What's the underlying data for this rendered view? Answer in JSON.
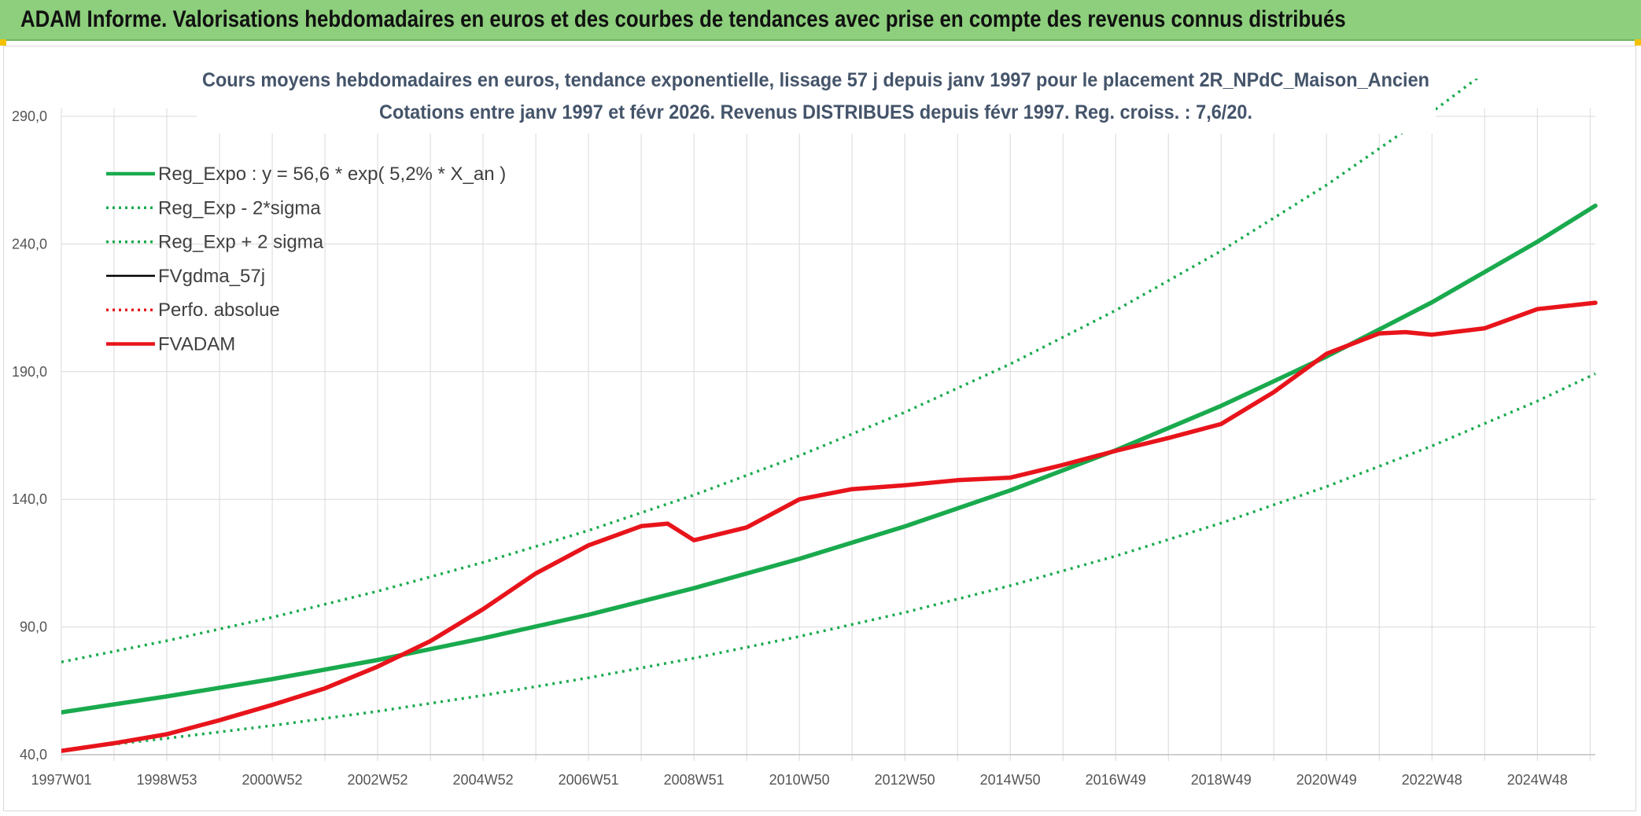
{
  "header": {
    "title": "ADAM Informe. Valorisations hebdomadaires en euros et des courbes de tendances avec prise en compte des revenus connus distribués"
  },
  "colors": {
    "banner": "#8dcf7c",
    "regression": "#1aaa4e",
    "actual": "#e8141b",
    "smooth": "#000000",
    "grid": "#d9d9d9"
  },
  "chart_data": {
    "type": "line",
    "title": "Cours moyens hebdomadaires en euros, tendance exponentielle, lissage 57 j depuis janv 1997 pour le placement 2R_NPdC_Maison_Ancien",
    "subtitle": "Cotations entre janv 1997 et févr 2026. Revenus DISTRIBUES depuis févr 1997. Reg. croiss. : 7,6/20.",
    "xlabel": "",
    "ylabel": "",
    "ylim": [
      40,
      290
    ],
    "y_ticks": [
      "40,0",
      "90,0",
      "140,0",
      "190,0",
      "240,0",
      "290,0"
    ],
    "x_range": [
      1997.0,
      2026.1
    ],
    "x_ticks": [
      {
        "x": 1997.0,
        "label": "1997W01"
      },
      {
        "x": 1999.0,
        "label": "1998W53"
      },
      {
        "x": 2001.0,
        "label": "2000W52"
      },
      {
        "x": 2003.0,
        "label": "2002W52"
      },
      {
        "x": 2005.0,
        "label": "2004W52"
      },
      {
        "x": 2007.0,
        "label": "2006W51"
      },
      {
        "x": 2009.0,
        "label": "2008W51"
      },
      {
        "x": 2011.0,
        "label": "2010W50"
      },
      {
        "x": 2013.0,
        "label": "2012W50"
      },
      {
        "x": 2015.0,
        "label": "2014W50"
      },
      {
        "x": 2017.0,
        "label": "2016W49"
      },
      {
        "x": 2019.0,
        "label": "2018W49"
      },
      {
        "x": 2021.0,
        "label": "2020W49"
      },
      {
        "x": 2023.0,
        "label": "2022W48"
      },
      {
        "x": 2025.0,
        "label": "2024W48"
      }
    ],
    "grid": true,
    "legend_position": "top-left",
    "series": [
      {
        "name": "Reg_Expo : y = 56,6 * exp( 5,2% *  X_an )",
        "style": "solid-thick",
        "color": "#1aaa4e",
        "x": [
          1997,
          1999,
          2001,
          2003,
          2005,
          2007,
          2009,
          2011,
          2013,
          2015,
          2017,
          2019,
          2021,
          2023,
          2025,
          2026.1
        ],
        "y": [
          56.6,
          62.8,
          69.6,
          77.1,
          85.6,
          94.8,
          105.2,
          116.7,
          129.4,
          143.5,
          159.2,
          176.6,
          195.9,
          217.2,
          240.9,
          255.0
        ]
      },
      {
        "name": "Reg_Exp - 2*sigma",
        "style": "dotted",
        "color": "#1aaa4e",
        "x": [
          1997,
          1999,
          2001,
          2003,
          2005,
          2007,
          2009,
          2011,
          2013,
          2015,
          2017,
          2019,
          2021,
          2023,
          2025,
          2026.1
        ],
        "y": [
          41.8,
          46.4,
          51.4,
          57.0,
          63.2,
          70.1,
          77.8,
          86.3,
          95.7,
          106.2,
          117.8,
          130.7,
          145.0,
          160.9,
          178.5,
          189.2
        ]
      },
      {
        "name": "Reg_Exp + 2 sigma",
        "style": "dotted",
        "color": "#1aaa4e",
        "x": [
          1997,
          1999,
          2001,
          2003,
          2005,
          2007,
          2009,
          2011,
          2013,
          2015,
          2017,
          2019,
          2021,
          2023,
          2024.25
        ],
        "y": [
          76.3,
          84.6,
          93.8,
          104.0,
          115.3,
          127.8,
          141.7,
          157.1,
          174.1,
          193.0,
          214.0,
          237.3,
          263.1,
          291.7,
          311.0
        ]
      },
      {
        "name": "FVgdma_57j",
        "style": "solid",
        "color": "#000000",
        "x": [
          1997,
          1998,
          1999,
          2000,
          2001,
          2002,
          2003,
          2004,
          2005,
          2006,
          2007,
          2008,
          2008.5,
          2009,
          2010,
          2011,
          2012,
          2013,
          2014,
          2015,
          2016,
          2017,
          2018,
          2019,
          2020,
          2021,
          2022,
          2022.5,
          2023,
          2024,
          2025,
          2026.1
        ],
        "y": [
          41.5,
          44.5,
          48.0,
          53.5,
          59.5,
          66.0,
          74.5,
          84.5,
          97.0,
          111.0,
          122.0,
          129.5,
          130.5,
          124.0,
          129.0,
          140.0,
          144.0,
          145.5,
          147.5,
          148.5,
          153.5,
          159.0,
          164.0,
          169.5,
          182.0,
          197.0,
          205.0,
          205.5,
          204.5,
          207.0,
          214.5,
          217.0
        ]
      },
      {
        "name": "Perfo. absolue",
        "style": "dotted",
        "color": "#e8141b",
        "x": [
          1997,
          1998,
          1999,
          2000,
          2001,
          2002,
          2003,
          2004,
          2005,
          2006,
          2007,
          2008,
          2008.5,
          2009,
          2010,
          2011,
          2012,
          2013,
          2014,
          2015,
          2016,
          2017,
          2018,
          2019,
          2020,
          2021,
          2022,
          2022.5,
          2023,
          2024,
          2025,
          2026.1
        ],
        "y": [
          41.5,
          44.5,
          48.0,
          53.5,
          59.5,
          66.0,
          74.5,
          84.5,
          97.0,
          111.0,
          122.0,
          129.5,
          130.5,
          124.0,
          129.0,
          140.0,
          144.0,
          145.5,
          147.5,
          148.5,
          153.5,
          159.0,
          164.0,
          169.5,
          182.0,
          197.0,
          205.0,
          205.5,
          204.5,
          207.0,
          214.5,
          217.0
        ]
      },
      {
        "name": "FVADAM",
        "style": "solid-thick",
        "color": "#e8141b",
        "x": [
          1997,
          1998,
          1999,
          2000,
          2001,
          2002,
          2003,
          2004,
          2005,
          2006,
          2007,
          2008,
          2008.5,
          2009,
          2010,
          2011,
          2012,
          2013,
          2014,
          2015,
          2016,
          2017,
          2018,
          2019,
          2020,
          2021,
          2022,
          2022.5,
          2023,
          2024,
          2025,
          2026.1
        ],
        "y": [
          41.5,
          44.5,
          48.0,
          53.5,
          59.5,
          66.0,
          74.5,
          84.5,
          97.0,
          111.0,
          122.0,
          129.5,
          130.5,
          124.0,
          129.0,
          140.0,
          144.0,
          145.5,
          147.5,
          148.5,
          153.5,
          159.0,
          164.0,
          169.5,
          182.0,
          197.0,
          205.0,
          205.5,
          204.5,
          207.0,
          214.5,
          217.0
        ]
      }
    ]
  }
}
